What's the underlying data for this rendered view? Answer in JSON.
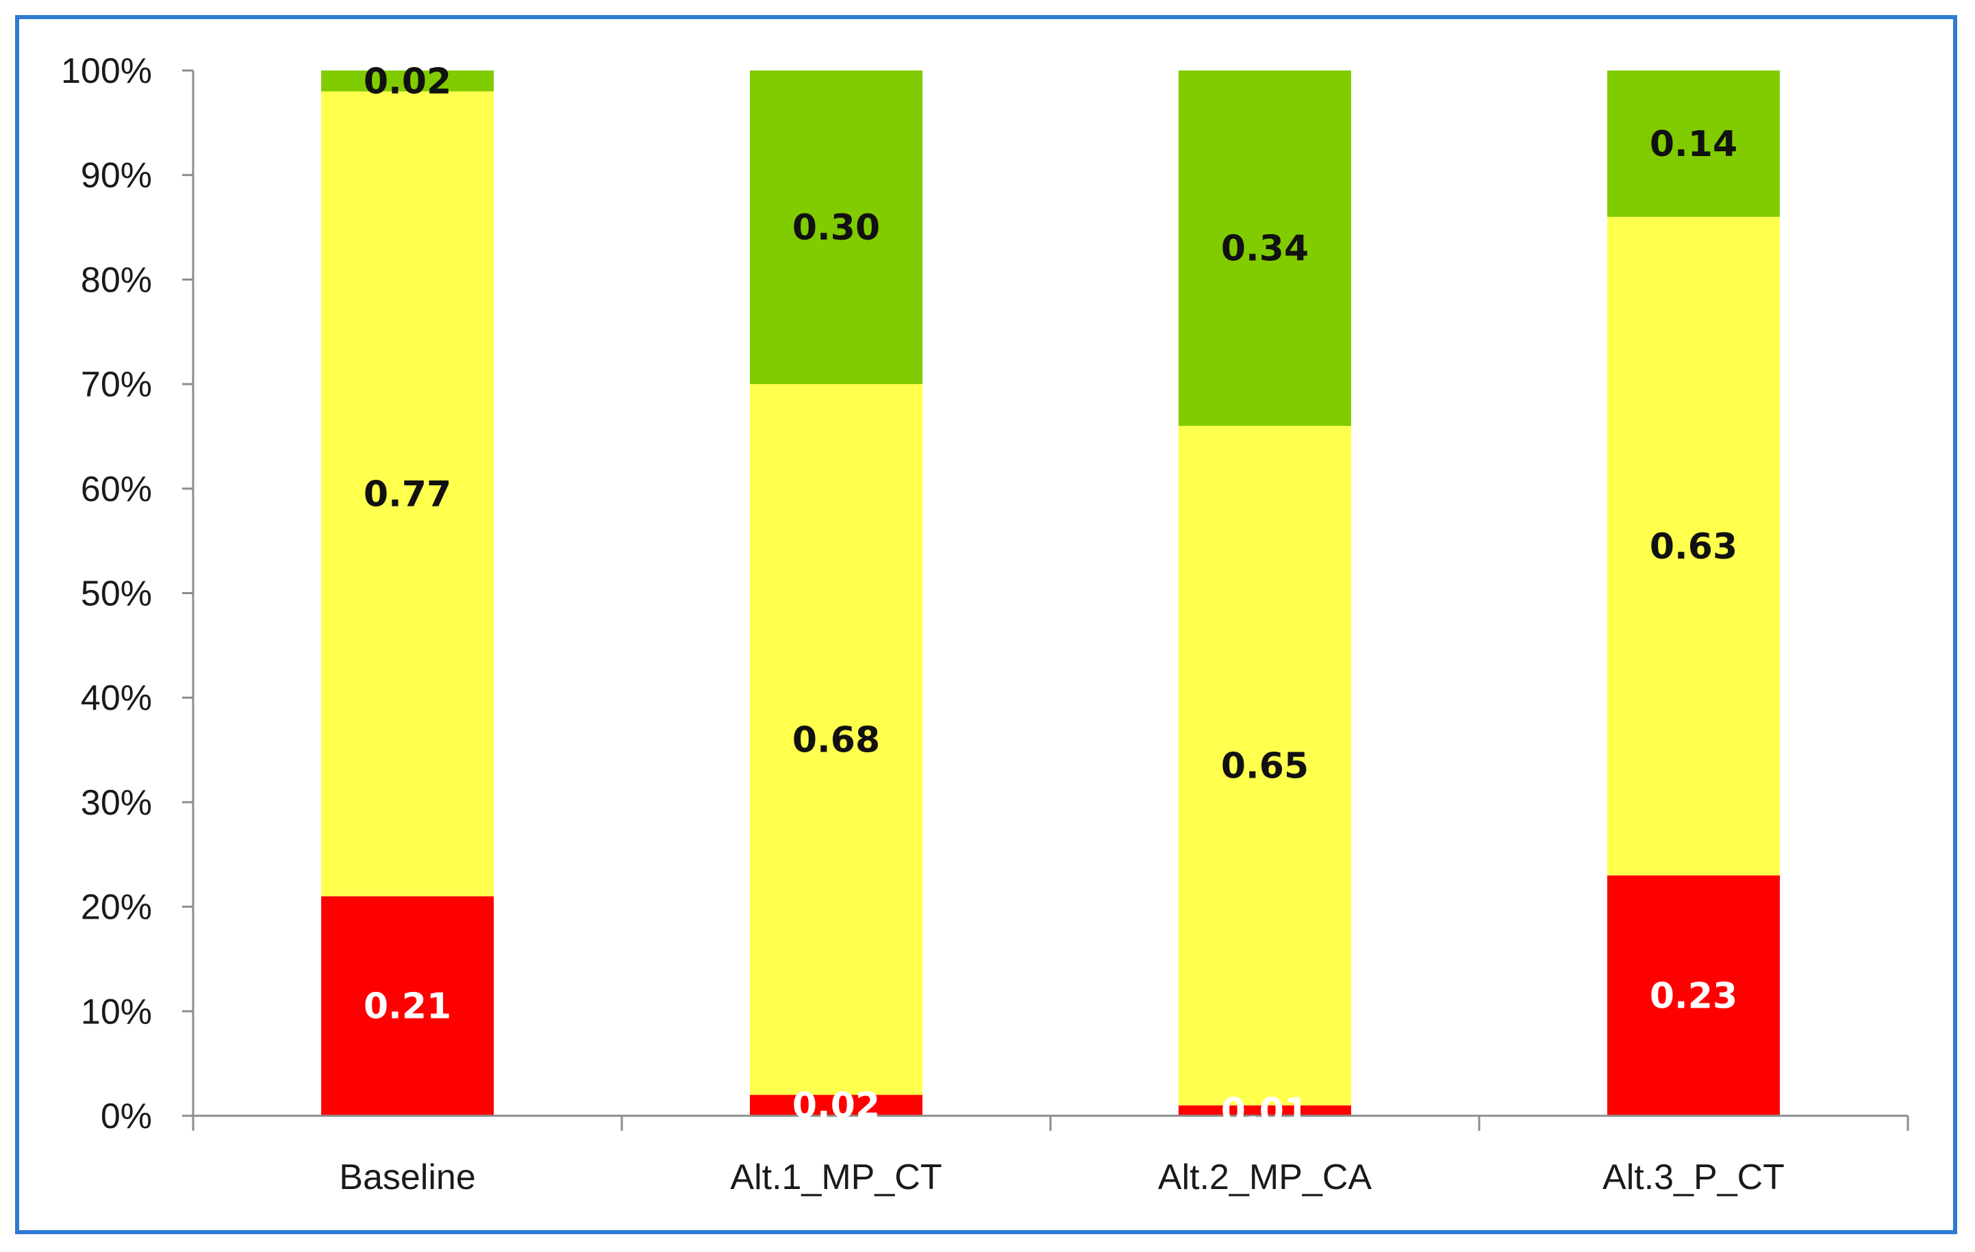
{
  "chart_data": {
    "type": "bar",
    "stacked": true,
    "percent_stacked": true,
    "categories": [
      "Baseline",
      "Alt.1_MP_CT",
      "Alt.2_MP_CA",
      "Alt.3_P_CT"
    ],
    "series": [
      {
        "name": "",
        "color": "#ff0000",
        "label_color": "#ffffff",
        "values": [
          0.21,
          0.02,
          0.01,
          0.23
        ],
        "labels": [
          "0.21",
          "0.02",
          "0.01",
          "0.23"
        ]
      },
      {
        "name": "",
        "color": "#ffff4d",
        "label_color": "#111111",
        "values": [
          0.77,
          0.68,
          0.65,
          0.63
        ],
        "labels": [
          "0.77",
          "0.68",
          "0.65",
          "0.63"
        ]
      },
      {
        "name": "",
        "color": "#80cc00",
        "label_color": "#111111",
        "values": [
          0.02,
          0.3,
          0.34,
          0.14
        ],
        "labels": [
          "0.02",
          "0.30",
          "0.34",
          "0.14"
        ]
      }
    ],
    "yticks": [
      "0%",
      "10%",
      "20%",
      "30%",
      "40%",
      "50%",
      "60%",
      "70%",
      "80%",
      "90%",
      "100%"
    ],
    "ylim": [
      0,
      1
    ],
    "title": "",
    "xlabel": "",
    "ylabel": "",
    "legend": "none",
    "grid": false,
    "frame_color": "#2e7bd1"
  }
}
